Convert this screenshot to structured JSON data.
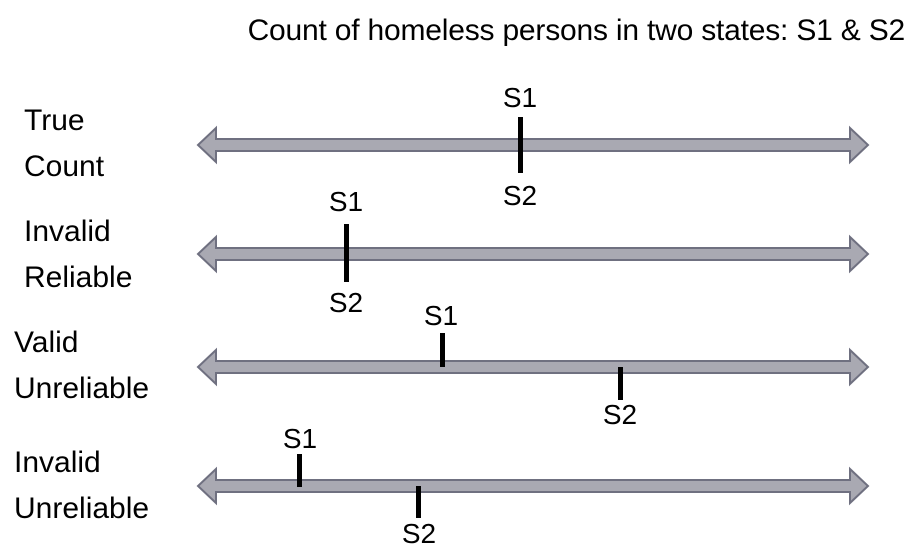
{
  "title": "Count of homeless persons in two states: S1 & S2",
  "rows": [
    {
      "label_line1": "True",
      "label_line2": "Count",
      "s1_label": "S1",
      "s2_label": "S2"
    },
    {
      "label_line1": "Invalid",
      "label_line2": "Reliable",
      "s1_label": "S1",
      "s2_label": "S2"
    },
    {
      "label_line1": "Valid",
      "label_line2": "Unreliable",
      "s1_label": "S1",
      "s2_label": "S2"
    },
    {
      "label_line1": "Invalid",
      "label_line2": "Unreliable",
      "s1_label": "S1",
      "s2_label": "S2"
    }
  ],
  "colors": {
    "arrow_fill": "#a9a9b2",
    "arrow_stroke": "#6f7080",
    "tick": "#000000"
  }
}
